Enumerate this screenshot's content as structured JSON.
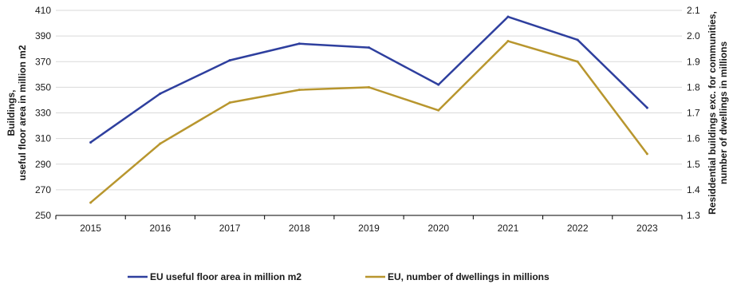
{
  "chart_data": {
    "type": "line",
    "title": "",
    "x": [
      "2015",
      "2016",
      "2017",
      "2018",
      "2019",
      "2020",
      "2021",
      "2022",
      "2023"
    ],
    "y_left": {
      "label_lines": [
        "Buildings,",
        "useful floor area in million m2"
      ],
      "lim": [
        250,
        410
      ],
      "ticks": [
        250,
        270,
        290,
        310,
        330,
        350,
        370,
        390,
        410
      ],
      "tick_labels": [
        "250",
        "270",
        "290",
        "310",
        "330",
        "350",
        "370",
        "390",
        "410"
      ]
    },
    "y_right": {
      "label_lines": [
        "Residdential buildings exc. for communities,",
        "number of dwellings in millions"
      ],
      "lim": [
        1.3,
        2.1
      ],
      "ticks": [
        1.3,
        1.4,
        1.5,
        1.6,
        1.7,
        1.8,
        1.9,
        2.0,
        2.1
      ],
      "tick_labels": [
        "1.3",
        "1.4",
        "1.5",
        "1.6",
        "1.7",
        "1.8",
        "1.9",
        "2.0",
        "2.1"
      ]
    },
    "series": [
      {
        "name": "EU useful floor area in million m2",
        "axis": "left",
        "color": "#2e3f9e",
        "values": [
          307,
          345,
          371,
          384,
          381,
          352,
          405,
          387,
          334
        ]
      },
      {
        "name": "EU, number of dwellings in millions",
        "axis": "right",
        "color": "#b8962e",
        "values": [
          1.35,
          1.58,
          1.74,
          1.79,
          1.8,
          1.71,
          1.98,
          1.9,
          1.54
        ]
      }
    ],
    "grid": true,
    "legend": "bottom"
  }
}
